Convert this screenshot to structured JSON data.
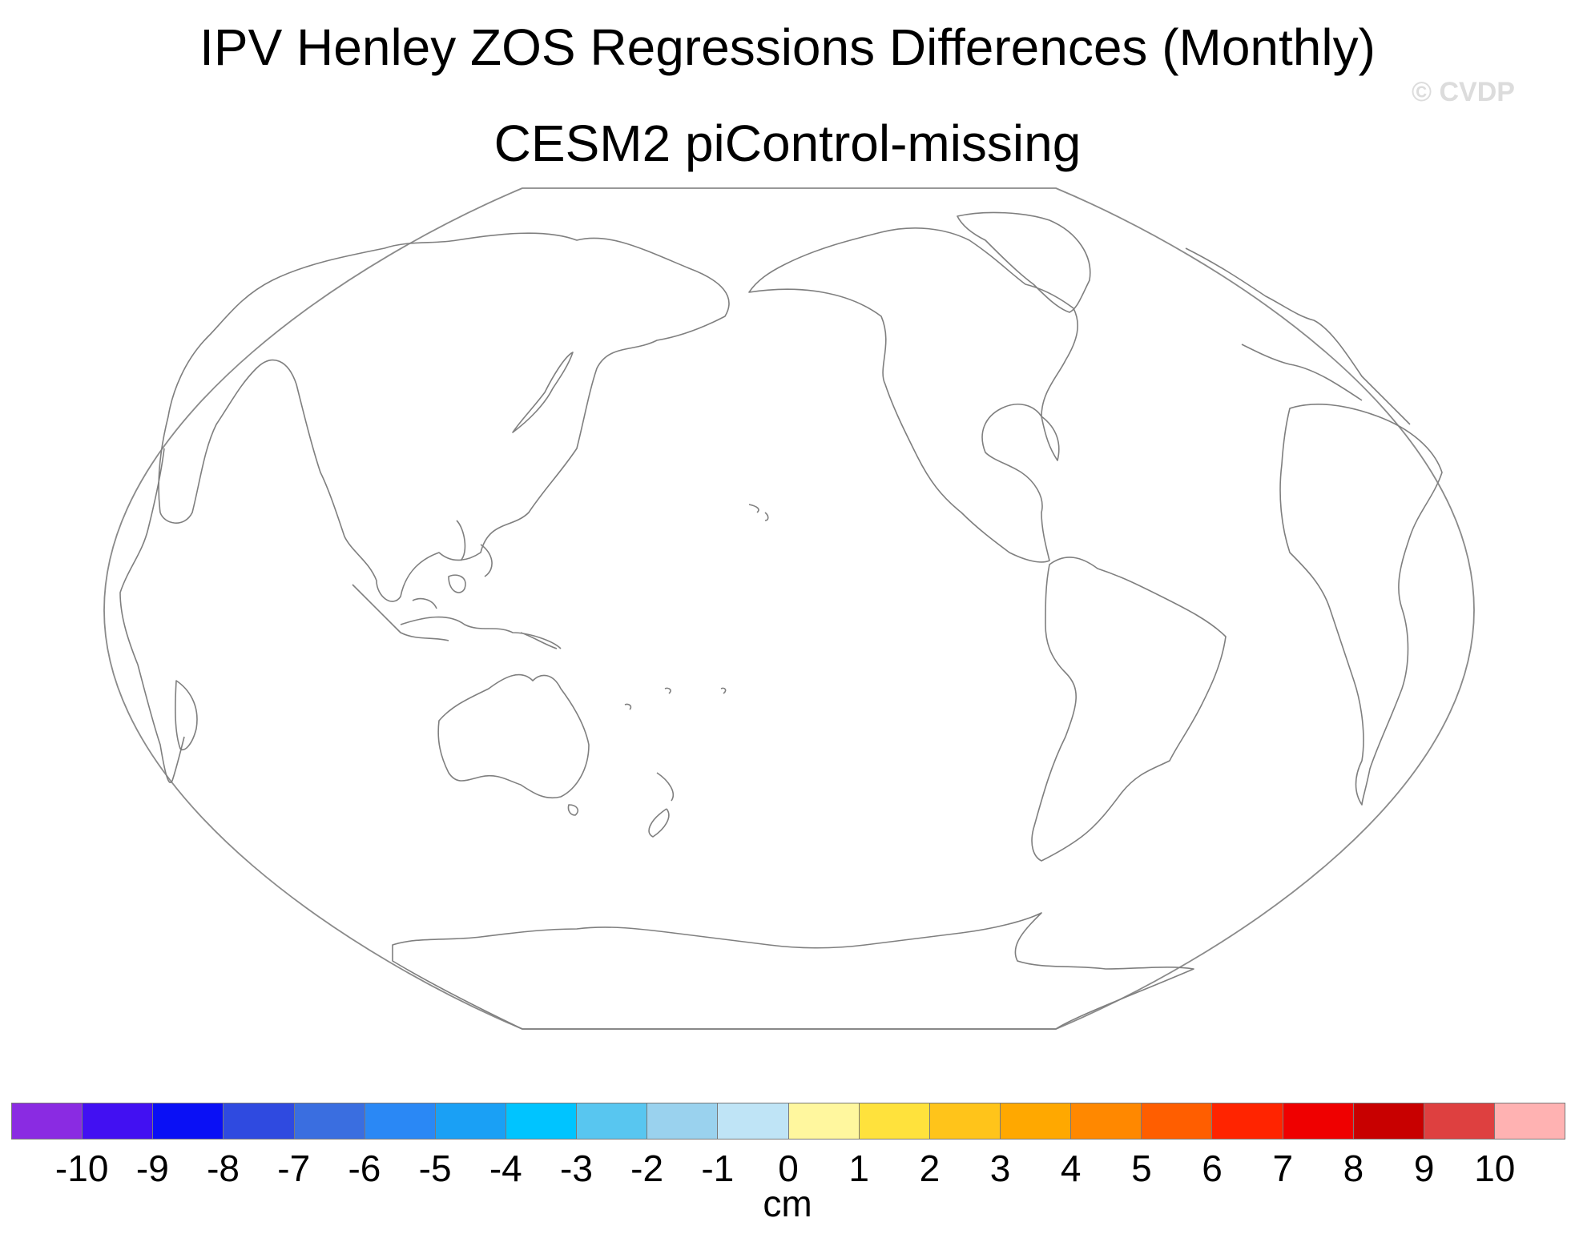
{
  "title": "IPV Henley ZOS Regressions Differences (Monthly)",
  "subtitle": "CESM2 piControl-missing",
  "watermark": "© CVDP",
  "map": {
    "projection": "Winkel tripel (global)",
    "center_longitude": 180,
    "coastline_color": "#7f7f7f",
    "data_shown": "none (missing)"
  },
  "colorbar": {
    "units": "cm",
    "tick_labels": [
      "-10",
      "-9",
      "-8",
      "-7",
      "-6",
      "-5",
      "-4",
      "-3",
      "-2",
      "-1",
      "0",
      "1",
      "2",
      "3",
      "4",
      "5",
      "6",
      "7",
      "8",
      "9",
      "10"
    ],
    "colors": [
      "#8a2be2",
      "#4210f2",
      "#0a10f5",
      "#2f4ae0",
      "#3a6ee0",
      "#2a88f5",
      "#1aa0f5",
      "#00c4ff",
      "#58c6f0",
      "#9ad2ee",
      "#bfe4f6",
      "#fff79e",
      "#ffe23c",
      "#ffc41a",
      "#ffa800",
      "#ff8800",
      "#ff5e00",
      "#ff2400",
      "#ef0000",
      "#c80000",
      "#de4040",
      "#ffb2b2"
    ]
  }
}
